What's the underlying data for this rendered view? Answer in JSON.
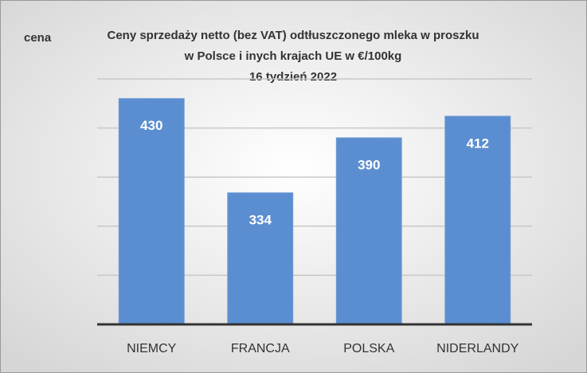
{
  "chart_data": {
    "type": "bar",
    "title": [
      "Ceny sprzedaży netto  (bez VAT) odtłuszczonego mleka w proszku",
      "w Polsce i inych krajach UE w €/100kg",
      "16  tydzień 2022"
    ],
    "y_label": "cena",
    "categories": [
      "NIEMCY",
      "FRANCJA",
      "POLSKA",
      "NIDERLANDY"
    ],
    "values": [
      430,
      334,
      390,
      412
    ],
    "color": "#5b8ed0",
    "ylim": [
      200,
      450
    ],
    "yticks": [
      200,
      250,
      300,
      350,
      400,
      450
    ],
    "grid": true
  }
}
